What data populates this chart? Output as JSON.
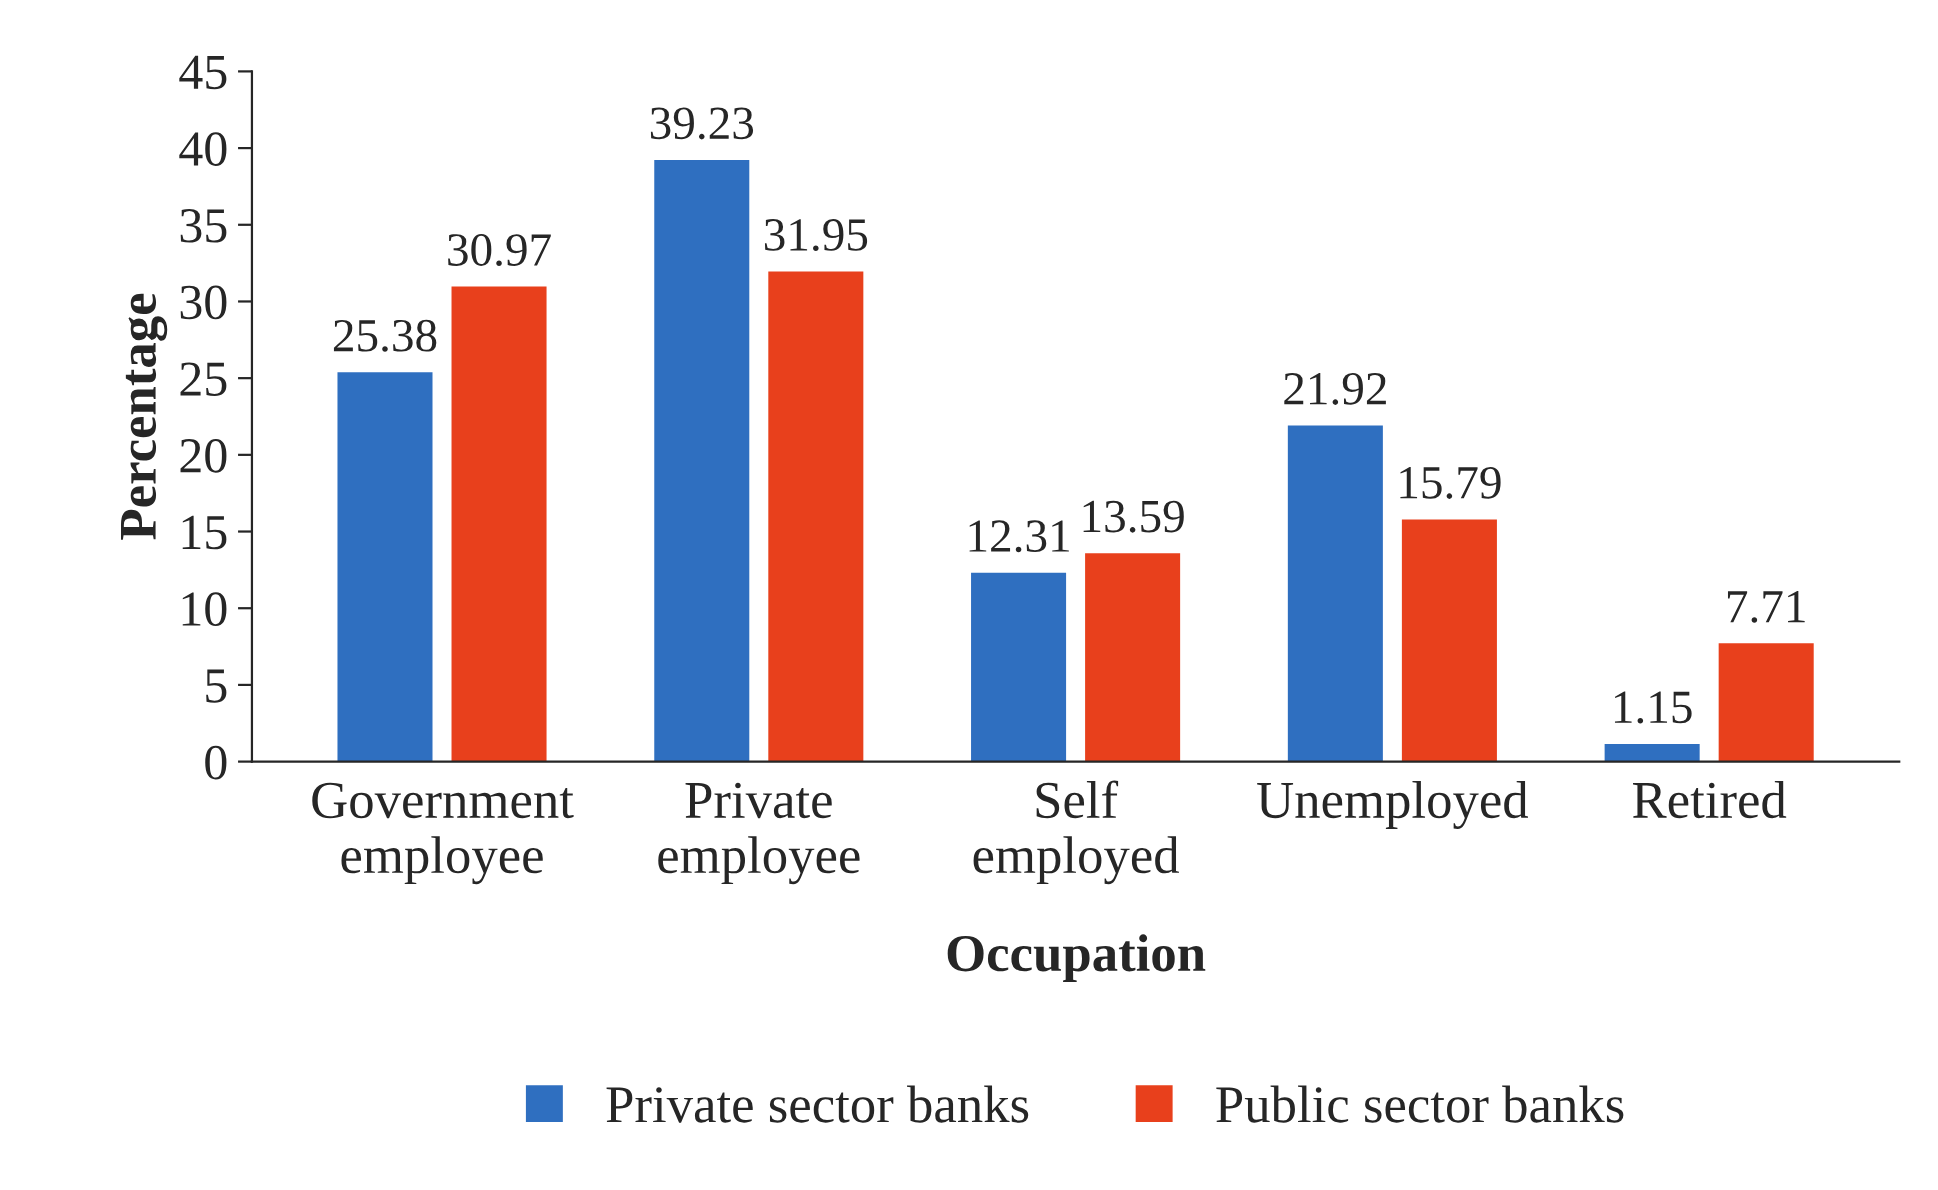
{
  "chart_data": {
    "type": "bar",
    "xlabel": "Occupation",
    "ylabel": "Percentage",
    "categories": [
      "Government\nemployee",
      "Private\nemployee",
      "Self\nemployed",
      "Unemployed",
      "Retired"
    ],
    "series": [
      {
        "name": "Private sector banks",
        "color": "#2f6fc0",
        "values": [
          25.38,
          39.23,
          12.31,
          21.92,
          1.15
        ]
      },
      {
        "name": "Public sector banks",
        "color": "#e8401c",
        "values": [
          30.97,
          31.95,
          13.59,
          15.79,
          7.71
        ]
      }
    ],
    "ylim": [
      0,
      45
    ],
    "yticks": [
      0,
      5,
      10,
      15,
      20,
      25,
      30,
      35,
      40,
      45
    ],
    "data_labels": true,
    "grid": false,
    "legend": "bottom"
  }
}
